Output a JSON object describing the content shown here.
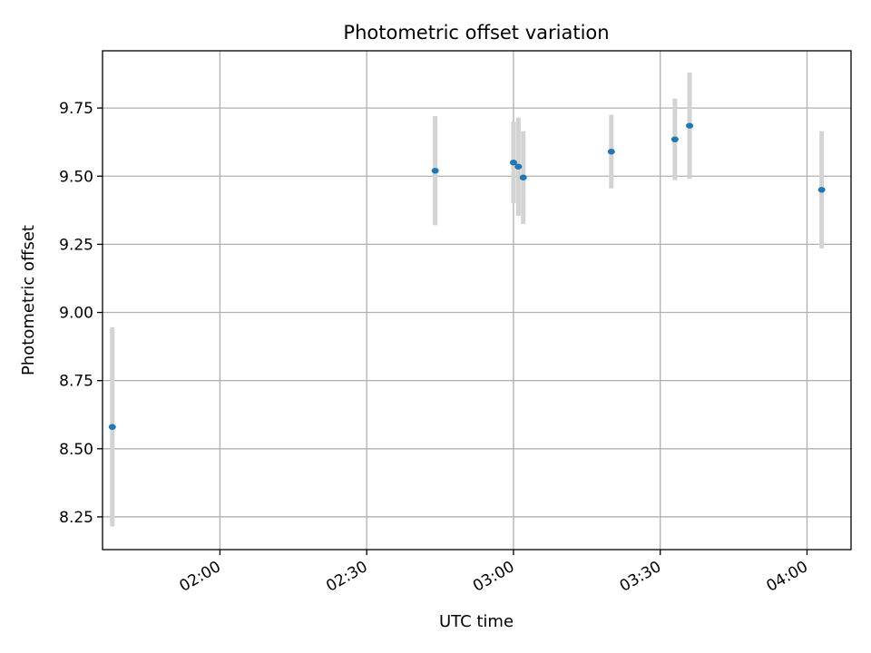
{
  "chart_data": {
    "type": "scatter",
    "title": "Photometric offset variation",
    "xlabel": "UTC time",
    "ylabel": "Photometric offset",
    "x_ticks": [
      "02:00",
      "02:30",
      "03:00",
      "03:30",
      "04:00"
    ],
    "y_ticks": [
      "8.25",
      "8.50",
      "8.75",
      "9.00",
      "9.25",
      "9.50",
      "9.75"
    ],
    "xlim": [
      "01:36",
      "04:09"
    ],
    "ylim": [
      8.13,
      9.96
    ],
    "grid": true,
    "colors": {
      "point": "#1f77b4",
      "errorbar": "#d3d3d3",
      "grid": "#b0b0b0"
    },
    "points": [
      {
        "time": "01:38",
        "y": 8.58,
        "err": 0.365
      },
      {
        "time": "02:44",
        "y": 9.52,
        "err": 0.2
      },
      {
        "time": "03:00",
        "y": 9.55,
        "err": 0.15
      },
      {
        "time": "03:01",
        "y": 9.535,
        "err": 0.18
      },
      {
        "time": "03:02",
        "y": 9.495,
        "err": 0.17
      },
      {
        "time": "03:20",
        "y": 9.59,
        "err": 0.135
      },
      {
        "time": "03:33",
        "y": 9.635,
        "err": 0.15
      },
      {
        "time": "03:36",
        "y": 9.685,
        "err": 0.195
      },
      {
        "time": "04:03",
        "y": 9.45,
        "err": 0.215
      }
    ]
  }
}
